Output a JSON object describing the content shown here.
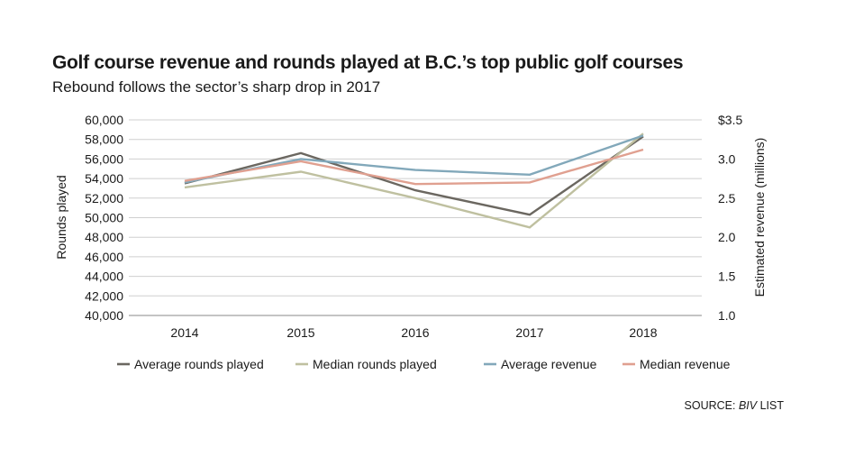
{
  "chart_data": {
    "type": "line",
    "title": "Golf course revenue  and rounds played at B.C.’s top public golf courses",
    "subtitle": "Rebound follows the sector’s sharp drop in 2017",
    "source_prefix": "SOURCE: ",
    "source_italic": "BIV",
    "source_suffix": " LIST",
    "categories": [
      "2014",
      "2015",
      "2016",
      "2017",
      "2018"
    ],
    "ylabel_left": "Rounds played",
    "ylabel_right": "Estimated revenue (millions)",
    "ylim_left": [
      40000,
      60000
    ],
    "ylim_right": [
      1.0,
      3.5
    ],
    "yticks_left": [
      {
        "value": 40000,
        "label": "40,000"
      },
      {
        "value": 42000,
        "label": "42,000"
      },
      {
        "value": 44000,
        "label": "44,000"
      },
      {
        "value": 46000,
        "label": "46,000"
      },
      {
        "value": 48000,
        "label": "48,000"
      },
      {
        "value": 50000,
        "label": "50,000"
      },
      {
        "value": 52000,
        "label": "52,000"
      },
      {
        "value": 54000,
        "label": "54,000"
      },
      {
        "value": 56000,
        "label": "56,000"
      },
      {
        "value": 58000,
        "label": "58,000"
      },
      {
        "value": 60000,
        "label": "60,000"
      }
    ],
    "yticks_right": [
      {
        "value": 1.0,
        "label": "1.0"
      },
      {
        "value": 1.5,
        "label": "1.5"
      },
      {
        "value": 2.0,
        "label": "2.0"
      },
      {
        "value": 2.5,
        "label": "2.5"
      },
      {
        "value": 3.0,
        "label": "3.0"
      },
      {
        "value": 3.5,
        "label": "$3.5"
      }
    ],
    "grid": true,
    "legend_position": "bottom",
    "series": [
      {
        "name": "Average rounds played",
        "axis": "left",
        "color": "#6b6760",
        "values": [
          53500,
          56600,
          52800,
          50300,
          58300
        ]
      },
      {
        "name": "Median rounds played",
        "axis": "left",
        "color": "#bfc0a0",
        "values": [
          53100,
          54700,
          52000,
          49000,
          58600
        ]
      },
      {
        "name": "Average revenue",
        "axis": "right",
        "color": "#82a8ba",
        "values": [
          2.7,
          3.0,
          2.86,
          2.8,
          3.3
        ]
      },
      {
        "name": "Median revenue",
        "axis": "right",
        "color": "#e0a090",
        "values": [
          2.72,
          2.97,
          2.68,
          2.7,
          3.12
        ]
      }
    ]
  }
}
